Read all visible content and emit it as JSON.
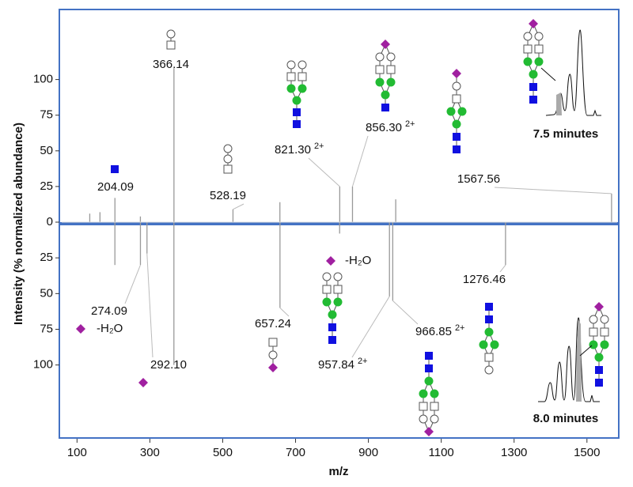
{
  "chart_data": {
    "type": "mirror",
    "xlabel": "m/z",
    "ylabel": "Intensity (% normalized abundance)",
    "xlim": [
      58,
      1583
    ],
    "xticks": [
      100,
      300,
      500,
      700,
      900,
      1100,
      1300,
      1500
    ],
    "top": {
      "ylim": [
        0,
        148
      ],
      "yticks": [
        0,
        25,
        50,
        75,
        100
      ],
      "inset_label": "7.5 minutes",
      "x": [
        135,
        163,
        204.09,
        274,
        366.14,
        528.19,
        657,
        821.3,
        856.3,
        975,
        1567.56
      ],
      "values": [
        6,
        7,
        17,
        4,
        108,
        9,
        14,
        25,
        25,
        16,
        20
      ],
      "x_labels": [
        null,
        null,
        "204.09",
        null,
        "366.14",
        "528.19",
        null,
        "821.30",
        "856.30",
        null,
        "1567.56"
      ],
      "charges": [
        null,
        null,
        null,
        null,
        null,
        null,
        null,
        "2+",
        "2+",
        null,
        null
      ],
      "notes": [
        null,
        null,
        null,
        null,
        null,
        null,
        null,
        null,
        null,
        null,
        null
      ]
    },
    "bottom": {
      "ylim": [
        0,
        150
      ],
      "yticks": [
        25,
        50,
        75,
        100
      ],
      "inset_label": "8.0 minutes",
      "x": [
        204,
        274.09,
        292.1,
        366,
        657.24,
        821,
        957.84,
        966.85,
        1276.46
      ],
      "values": [
        30,
        30,
        22,
        100,
        60,
        8,
        52,
        55,
        30
      ],
      "x_labels": [
        null,
        "274.09",
        "292.10",
        null,
        "657.24",
        null,
        "957.84",
        "966.85",
        "1276.46"
      ],
      "charges": [
        null,
        null,
        null,
        null,
        null,
        null,
        "2+",
        "2+",
        null
      ],
      "notes": [
        null,
        "-H₂O",
        null,
        null,
        null,
        null,
        "-H₂O",
        null,
        null
      ]
    },
    "line_color": "#999999",
    "frame_color": "#4472c4"
  }
}
